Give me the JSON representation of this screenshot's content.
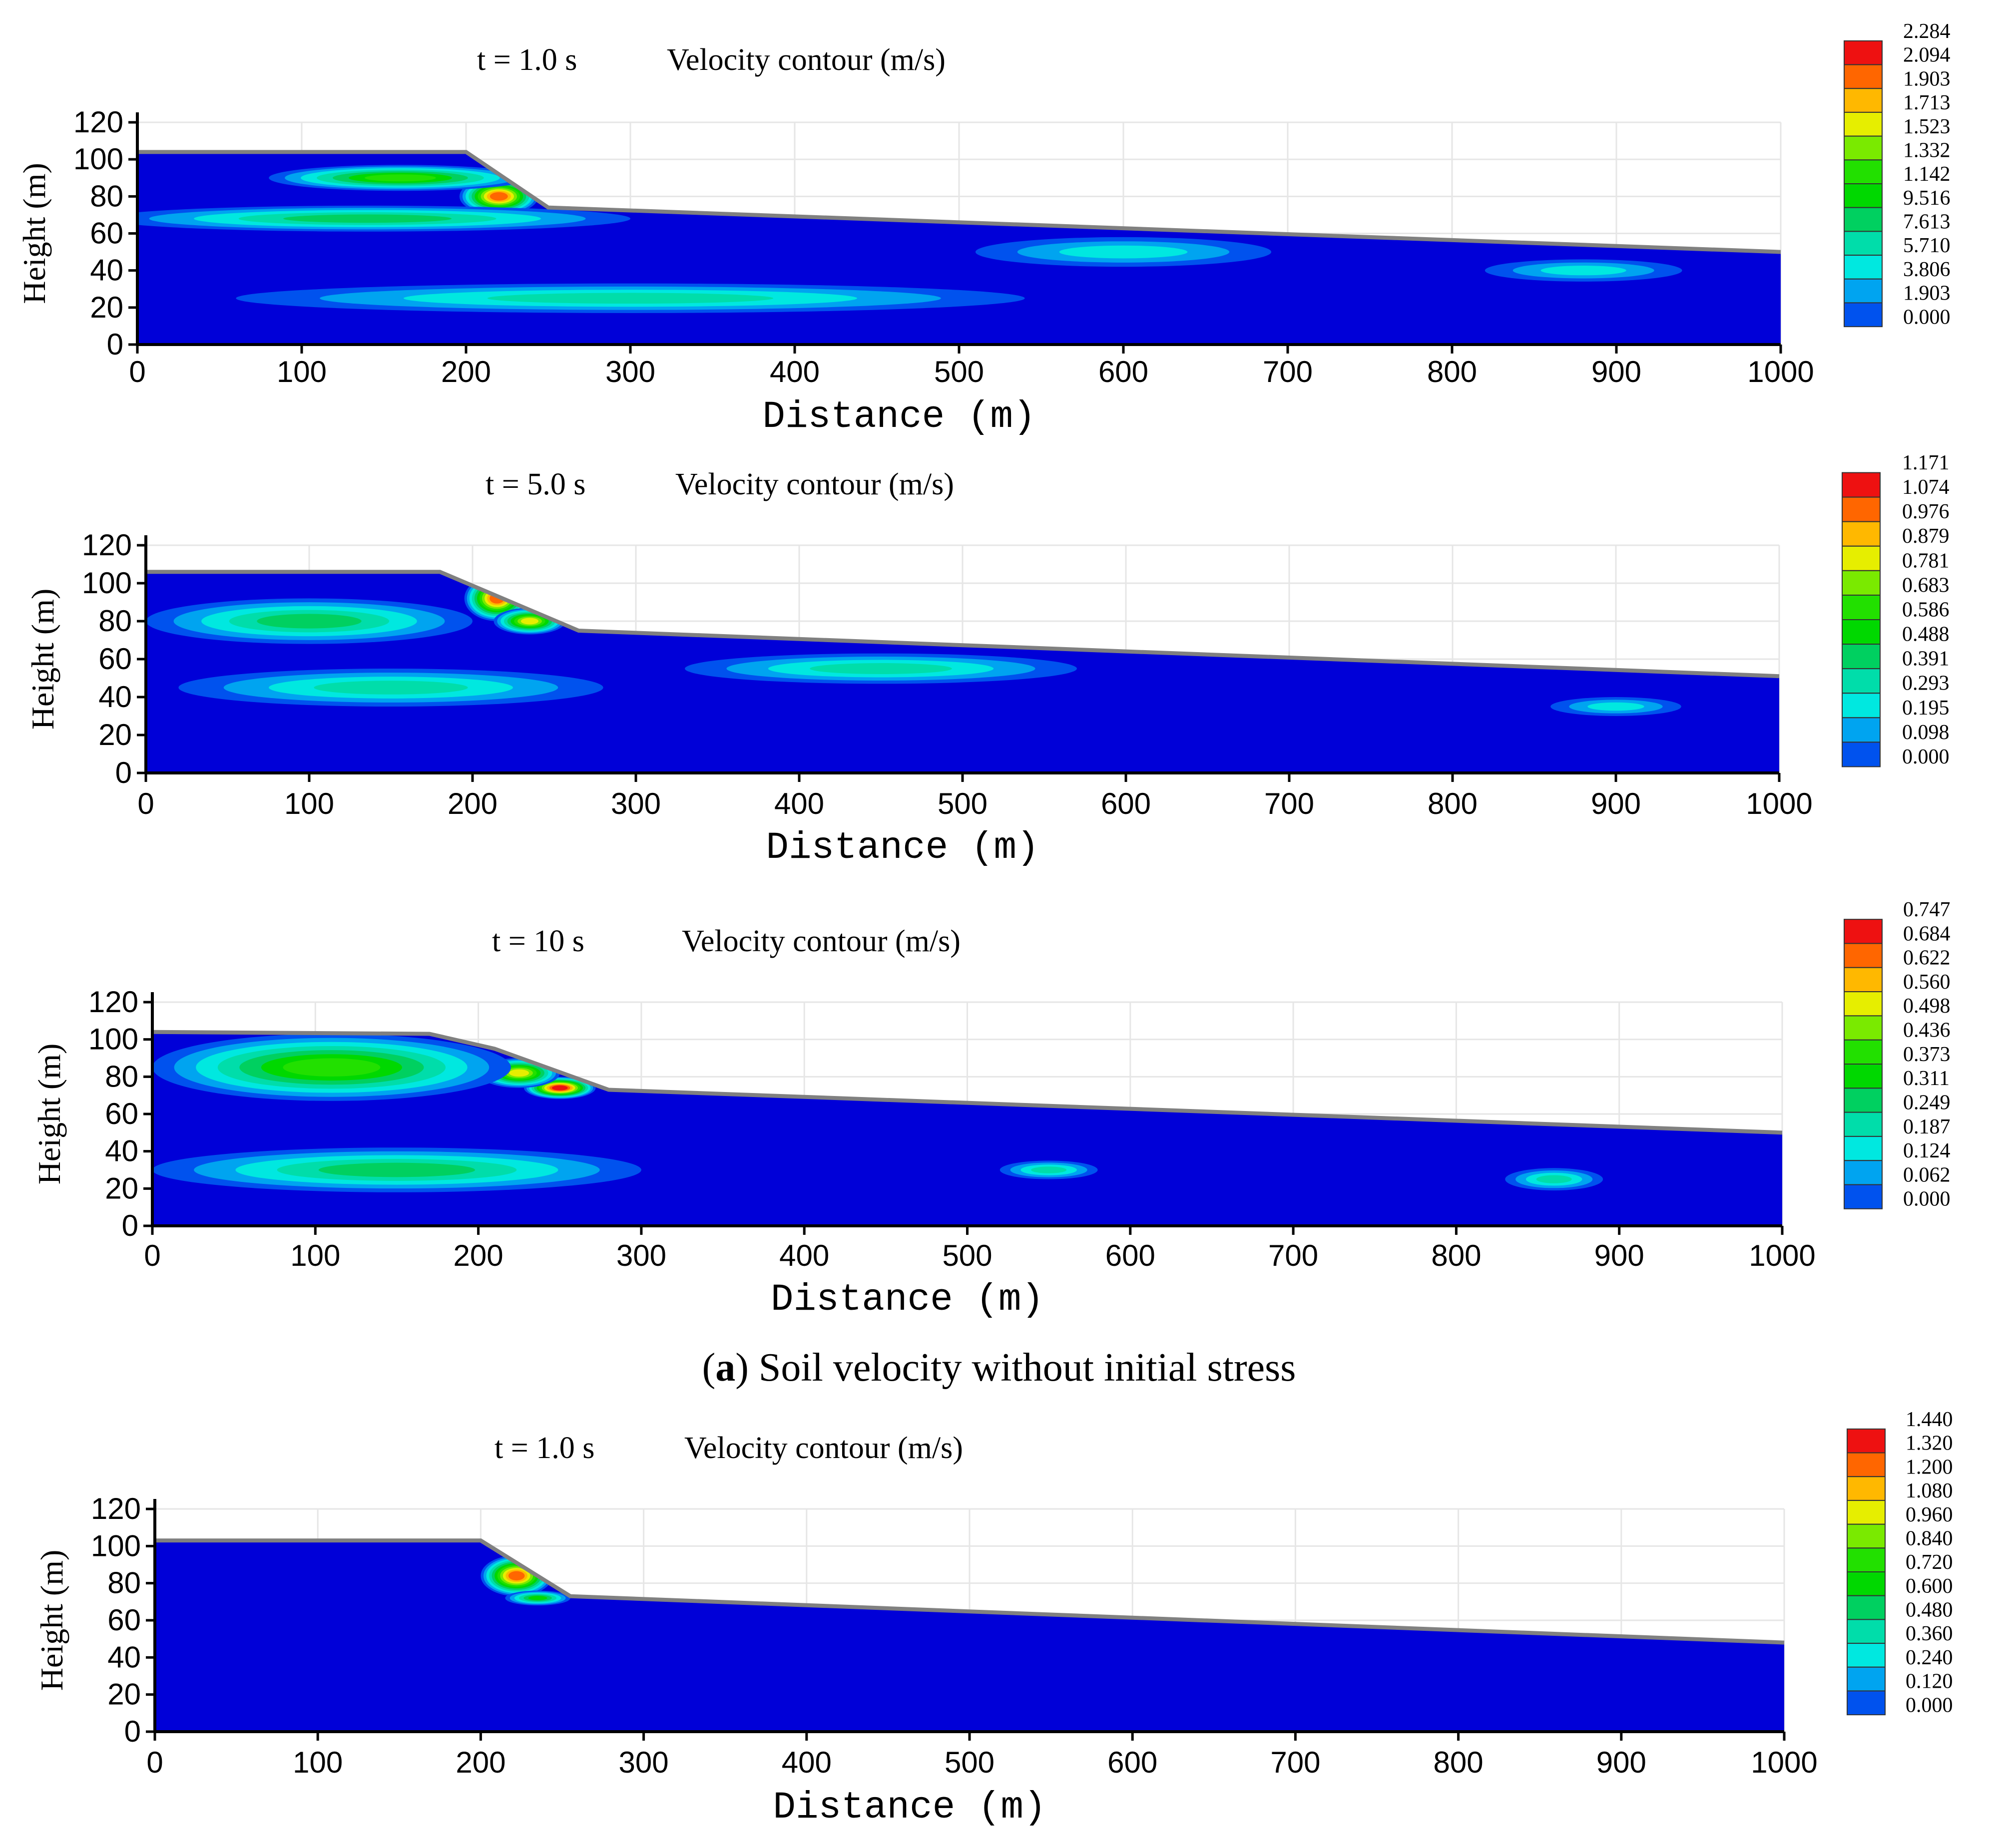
{
  "panel_caption": {
    "label": "a",
    "text": "Soil velocity without initial stress"
  },
  "chart_data": [
    {
      "type": "heatmap",
      "title_time": "t = 1.0 s",
      "title": "Velocity contour  (m/s)",
      "xlabel": "Distance  (m)",
      "ylabel": "Height  (m)",
      "xlim": [
        0,
        1000
      ],
      "ylim": [
        0,
        120
      ],
      "xticks": [
        0,
        100,
        200,
        300,
        400,
        500,
        600,
        700,
        800,
        900,
        1000
      ],
      "yticks": [
        0,
        20,
        40,
        60,
        80,
        100,
        120
      ],
      "profile": [
        [
          0,
          104
        ],
        [
          200,
          104
        ],
        [
          250,
          74
        ],
        [
          1000,
          50
        ]
      ],
      "legend_values": [
        "2.284",
        "2.094",
        "1.903",
        "1.713",
        "1.523",
        "1.332",
        "1.142",
        "9.516",
        "7.613",
        "5.710",
        "3.806",
        "1.903",
        "0.000"
      ],
      "hotspots": [
        {
          "x": 220,
          "y": 80,
          "rx": 24,
          "ry": 10,
          "level": 11
        },
        {
          "x": 160,
          "y": 90,
          "rx": 80,
          "ry": 7,
          "level": 7
        },
        {
          "x": 140,
          "y": 68,
          "rx": 160,
          "ry": 7,
          "level": 5
        },
        {
          "x": 300,
          "y": 25,
          "rx": 240,
          "ry": 8,
          "level": 4
        },
        {
          "x": 600,
          "y": 50,
          "rx": 90,
          "ry": 8,
          "level": 3
        },
        {
          "x": 880,
          "y": 40,
          "rx": 60,
          "ry": 6,
          "level": 3
        }
      ]
    },
    {
      "type": "heatmap",
      "title_time": "t = 5.0 s",
      "title": "Velocity contour  (m/s)",
      "xlabel": "Distance  (m)",
      "ylabel": "Height  (m)",
      "xlim": [
        0,
        1000
      ],
      "ylim": [
        0,
        120
      ],
      "xticks": [
        0,
        100,
        200,
        300,
        400,
        500,
        600,
        700,
        800,
        900,
        1000
      ],
      "yticks": [
        0,
        20,
        40,
        60,
        80,
        100,
        120
      ],
      "profile": [
        [
          0,
          106
        ],
        [
          180,
          106
        ],
        [
          265,
          75
        ],
        [
          1000,
          51
        ]
      ],
      "legend_values": [
        "1.171",
        "1.074",
        "0.976",
        "0.879",
        "0.781",
        "0.683",
        "0.586",
        "0.488",
        "0.391",
        "0.293",
        "0.195",
        "0.098",
        "0.000"
      ],
      "hotspots": [
        {
          "x": 215,
          "y": 92,
          "rx": 20,
          "ry": 12,
          "level": 11
        },
        {
          "x": 235,
          "y": 80,
          "rx": 22,
          "ry": 7,
          "level": 9
        },
        {
          "x": 100,
          "y": 80,
          "rx": 100,
          "ry": 12,
          "level": 5
        },
        {
          "x": 150,
          "y": 45,
          "rx": 130,
          "ry": 10,
          "level": 4
        },
        {
          "x": 450,
          "y": 55,
          "rx": 120,
          "ry": 8,
          "level": 4
        },
        {
          "x": 900,
          "y": 35,
          "rx": 40,
          "ry": 5,
          "level": 3
        }
      ]
    },
    {
      "type": "heatmap",
      "title_time": "t = 10 s",
      "title": "Velocity contour  (m/s)",
      "xlabel": "Distance  (m)",
      "ylabel": "Height  (m)",
      "xlim": [
        0,
        1000
      ],
      "ylim": [
        0,
        120
      ],
      "xticks": [
        0,
        100,
        200,
        300,
        400,
        500,
        600,
        700,
        800,
        900,
        1000
      ],
      "yticks": [
        0,
        20,
        40,
        60,
        80,
        100,
        120
      ],
      "profile": [
        [
          0,
          104
        ],
        [
          170,
          103
        ],
        [
          210,
          95
        ],
        [
          280,
          73
        ],
        [
          1000,
          50
        ]
      ],
      "legend_values": [
        "0.747",
        "0.684",
        "0.622",
        "0.560",
        "0.498",
        "0.436",
        "0.373",
        "0.311",
        "0.249",
        "0.187",
        "0.124",
        "0.062",
        "0.000"
      ],
      "hotspots": [
        {
          "x": 250,
          "y": 74,
          "rx": 22,
          "ry": 6,
          "level": 12
        },
        {
          "x": 225,
          "y": 82,
          "rx": 25,
          "ry": 8,
          "level": 9
        },
        {
          "x": 110,
          "y": 85,
          "rx": 110,
          "ry": 18,
          "level": 7
        },
        {
          "x": 150,
          "y": 30,
          "rx": 150,
          "ry": 12,
          "level": 5
        },
        {
          "x": 550,
          "y": 30,
          "rx": 30,
          "ry": 5,
          "level": 4
        },
        {
          "x": 860,
          "y": 25,
          "rx": 30,
          "ry": 6,
          "level": 4
        }
      ]
    },
    {
      "type": "heatmap",
      "title_time": "t = 1.0 s",
      "title": "Velocity contour  (m/s)",
      "xlabel": "Distance  (m)",
      "ylabel": "Height  (m)",
      "xlim": [
        0,
        1000
      ],
      "ylim": [
        0,
        120
      ],
      "xticks": [
        0,
        100,
        200,
        300,
        400,
        500,
        600,
        700,
        800,
        900,
        1000
      ],
      "yticks": [
        0,
        20,
        40,
        60,
        80,
        100,
        120
      ],
      "profile": [
        [
          0,
          103
        ],
        [
          200,
          103
        ],
        [
          255,
          73
        ],
        [
          1000,
          48
        ]
      ],
      "legend_values": [
        "1.440",
        "1.320",
        "1.200",
        "1.080",
        "0.960",
        "0.840",
        "0.720",
        "0.600",
        "0.480",
        "0.360",
        "0.240",
        "0.120",
        "0.000"
      ],
      "hotspots": [
        {
          "x": 222,
          "y": 84,
          "rx": 22,
          "ry": 11,
          "level": 11
        },
        {
          "x": 235,
          "y": 72,
          "rx": 20,
          "ry": 4,
          "level": 6
        }
      ]
    }
  ],
  "colors": {
    "scale": [
      "#0000d8",
      "#0052ee",
      "#00a4f0",
      "#00e8e0",
      "#00ddaa",
      "#00d060",
      "#00d800",
      "#22e000",
      "#7aea00",
      "#e6ee00",
      "#ffb800",
      "#ff6600",
      "#ee1111"
    ],
    "grid": "#e6e6e6",
    "profile_edge": "#808080"
  }
}
